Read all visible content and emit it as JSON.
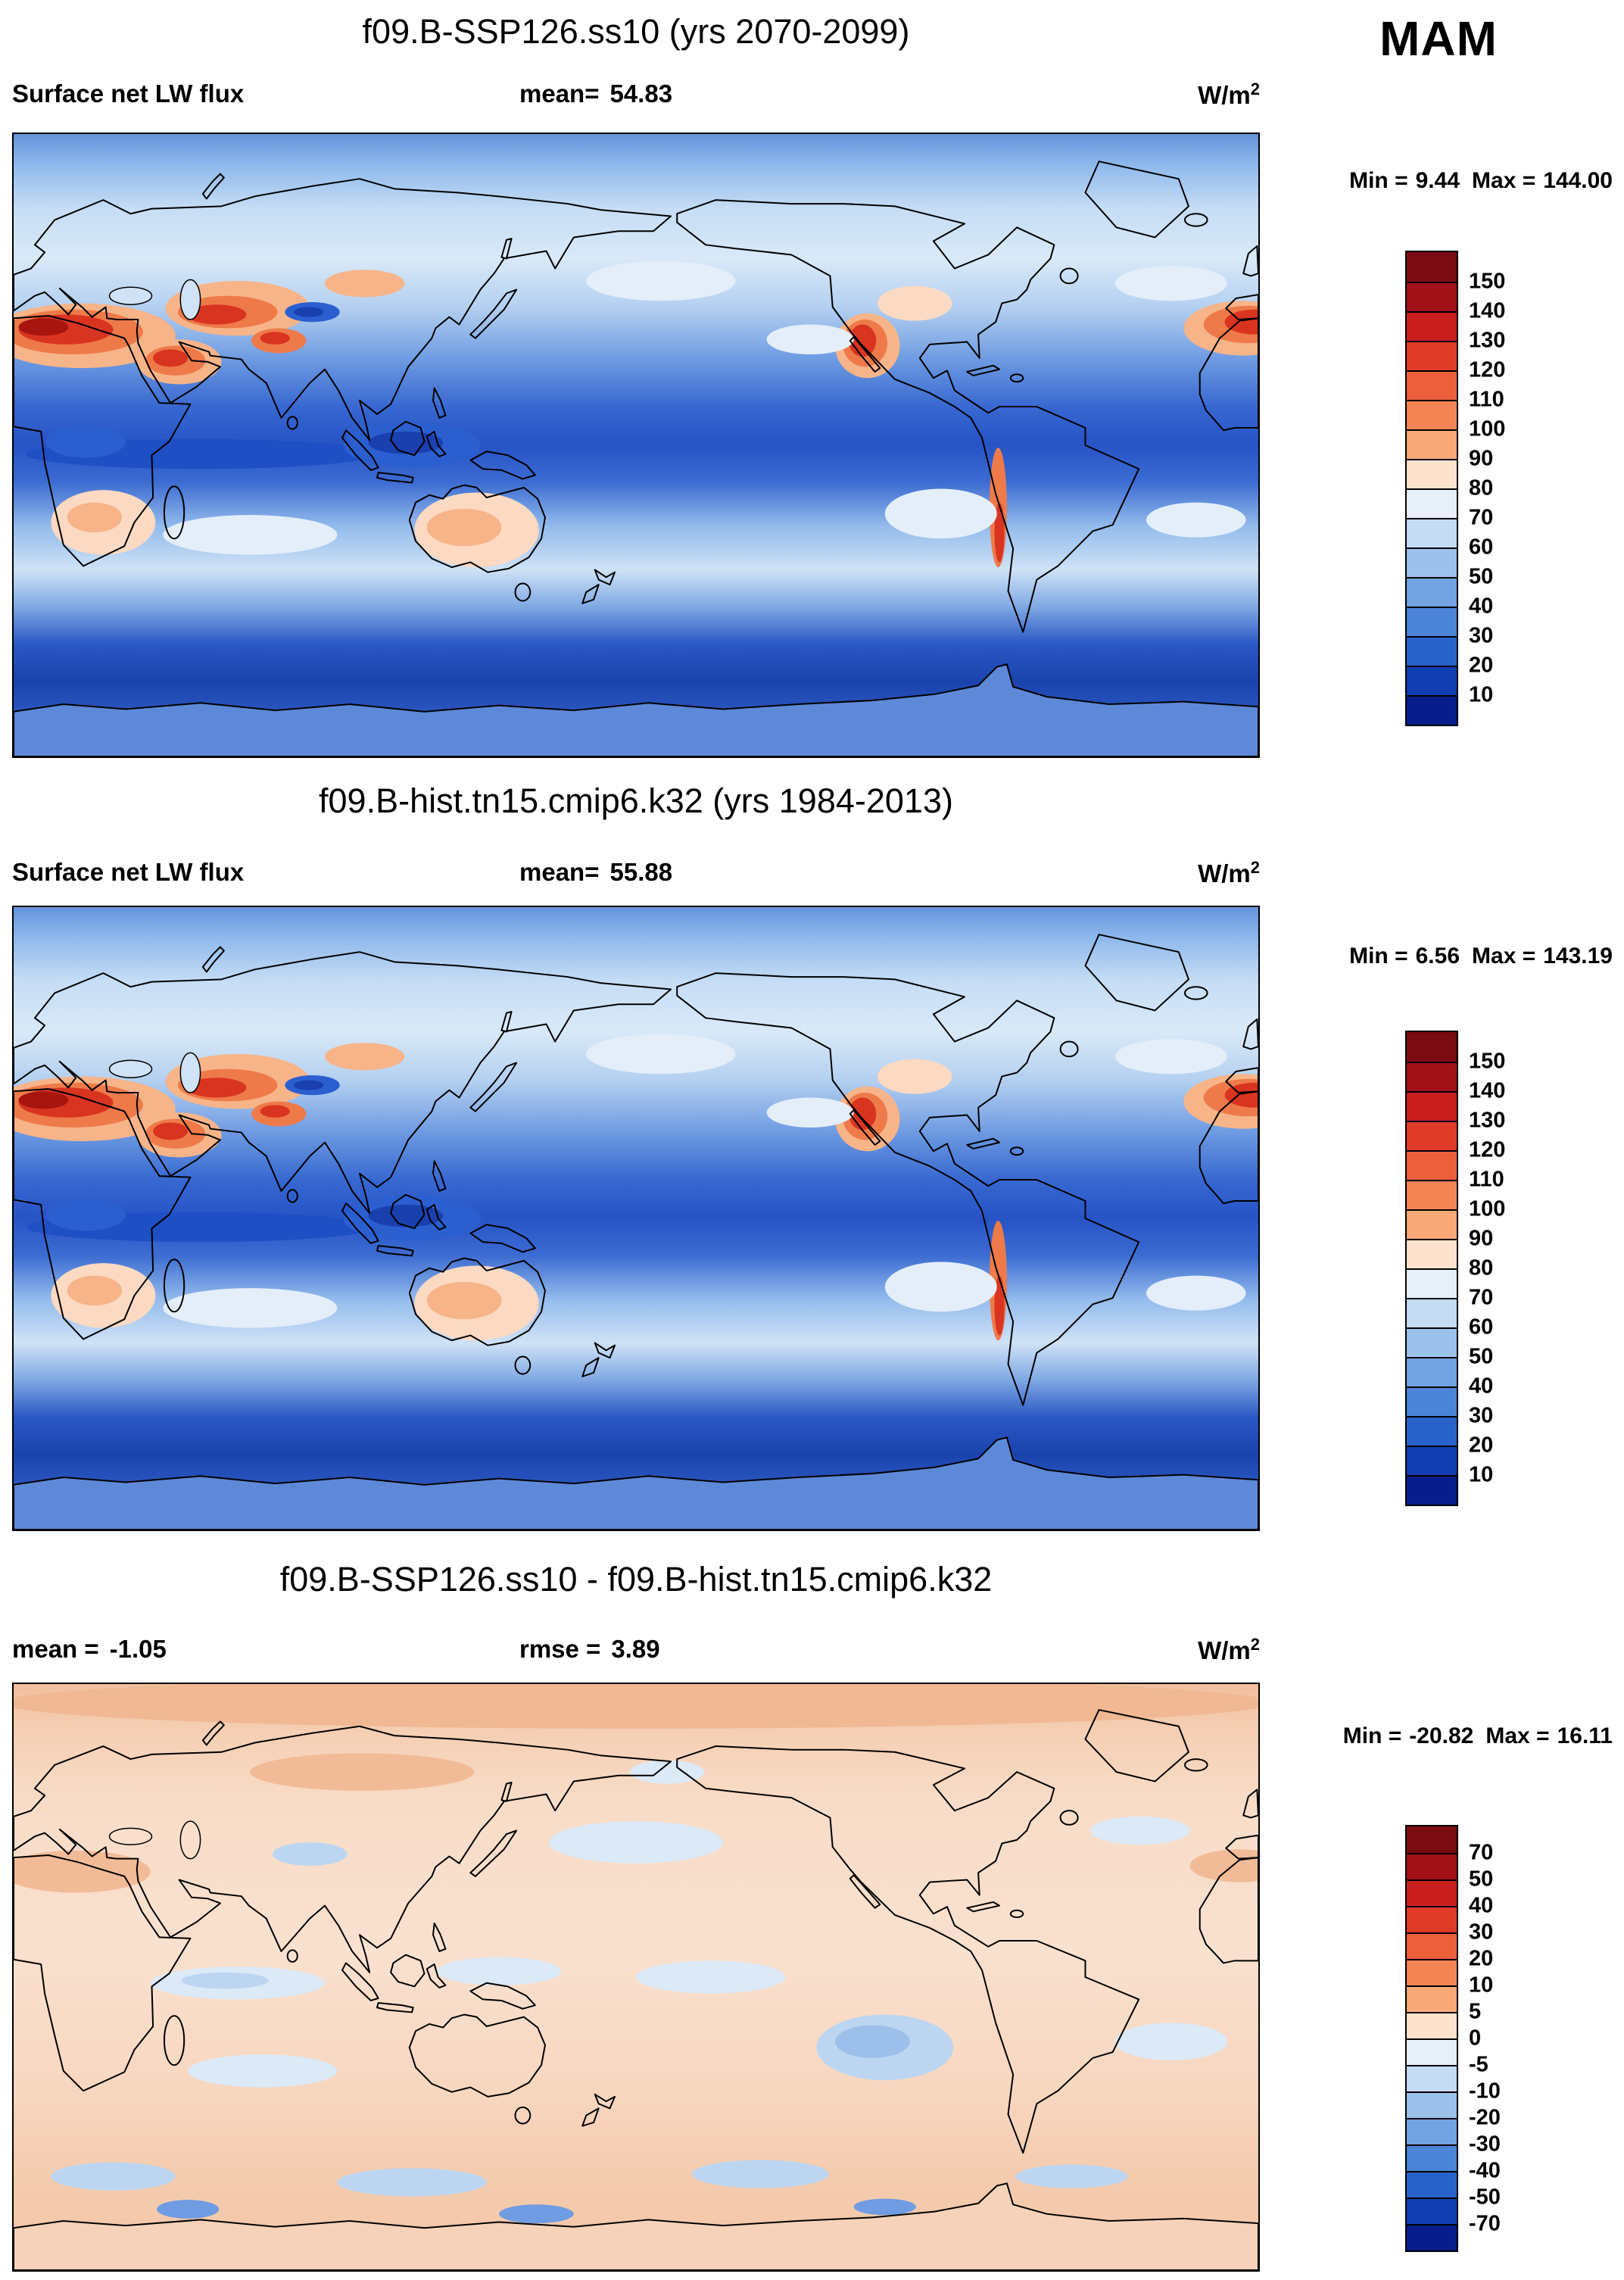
{
  "figure": {
    "season": "MAM",
    "units_base": "W/m",
    "units_exp": "2"
  },
  "panels": [
    {
      "title": "f09.B-SSP126.ss10 (yrs 2070-2099)",
      "left_label": "Surface net LW flux",
      "left_value": "",
      "center_label": "mean=",
      "center_value": "54.83",
      "min_label": "Min =",
      "min_value": "9.44",
      "max_label": "Max =",
      "max_value": "144.00",
      "colorbar_labels": [
        "150",
        "140",
        "130",
        "120",
        "110",
        "100",
        "90",
        "80",
        "70",
        "60",
        "50",
        "40",
        "30",
        "20",
        "10"
      ]
    },
    {
      "title": "f09.B-hist.tn15.cmip6.k32 (yrs 1984-2013)",
      "left_label": "Surface net LW flux",
      "left_value": "",
      "center_label": "mean=",
      "center_value": "55.88",
      "min_label": "Min =",
      "min_value": "6.56",
      "max_label": "Max =",
      "max_value": "143.19",
      "colorbar_labels": [
        "150",
        "140",
        "130",
        "120",
        "110",
        "100",
        "90",
        "80",
        "70",
        "60",
        "50",
        "40",
        "30",
        "20",
        "10"
      ]
    },
    {
      "title": "f09.B-SSP126.ss10 - f09.B-hist.tn15.cmip6.k32",
      "left_label": "mean =",
      "left_value": "-1.05",
      "center_label": "rmse =",
      "center_value": "3.89",
      "min_label": "Min =",
      "min_value": "-20.82",
      "max_label": "Max =",
      "max_value": "16.11",
      "colorbar_labels": [
        "70",
        "50",
        "40",
        "30",
        "20",
        "10",
        "5",
        "0",
        "-5",
        "-10",
        "-20",
        "-30",
        "-40",
        "-50",
        "-70"
      ]
    }
  ],
  "colors": {
    "palette_top_to_bottom": [
      "#7a0b11",
      "#a31118",
      "#c81e1e",
      "#e03a28",
      "#ec5f3d",
      "#f58455",
      "#f9a878",
      "#fde3cd",
      "#e7f0f9",
      "#c4dcf4",
      "#9cc2ec",
      "#72a3e2",
      "#4b84d8",
      "#2a62cc",
      "#123eb4",
      "#081d8c"
    ]
  },
  "chart_data": [
    {
      "type": "heatmap",
      "subtype": "filled-contour-global-map",
      "projection": "cylindrical equidistant, Pacific-centered (0E left edge)",
      "title": "f09.B-SSP126.ss10 (yrs 2070-2099)",
      "variable": "Surface net LW flux",
      "season": "MAM",
      "units": "W/m2",
      "mean": 54.83,
      "min": 9.44,
      "max": 144.0,
      "contour_levels": [
        10,
        20,
        30,
        40,
        50,
        60,
        70,
        80,
        90,
        100,
        110,
        120,
        130,
        140,
        150
      ],
      "palette": "blue (low) to white to red (high), 16 classes",
      "legend_position": "right vertical colorbar",
      "notes": "High values (red) over Sahara, Arabia, SW/Central Asia, N India, Mexico/SW North America, Andes, NW Africa; low values (dark blue) over equatorial oceans, maritime continent, Tibet, Southern Ocean"
    },
    {
      "type": "heatmap",
      "subtype": "filled-contour-global-map",
      "projection": "cylindrical equidistant, Pacific-centered (0E left edge)",
      "title": "f09.B-hist.tn15.cmip6.k32 (yrs 1984-2013)",
      "variable": "Surface net LW flux",
      "season": "MAM",
      "units": "W/m2",
      "mean": 55.88,
      "min": 6.56,
      "max": 143.19,
      "contour_levels": [
        10,
        20,
        30,
        40,
        50,
        60,
        70,
        80,
        90,
        100,
        110,
        120,
        130,
        140,
        150
      ],
      "palette": "blue (low) to white to red (high), 16 classes",
      "legend_position": "right vertical colorbar",
      "notes": "Spatial pattern nearly identical to top panel"
    },
    {
      "type": "heatmap",
      "subtype": "filled-contour-global-difference-map",
      "projection": "cylindrical equidistant, Pacific-centered (0E left edge)",
      "title": "f09.B-SSP126.ss10 - f09.B-hist.tn15.cmip6.k32",
      "variable": "Surface net LW flux difference",
      "season": "MAM",
      "units": "W/m2",
      "mean": -1.05,
      "rmse": 3.89,
      "min": -20.82,
      "max": 16.11,
      "contour_levels": [
        -70,
        -50,
        -40,
        -30,
        -20,
        -10,
        -5,
        0,
        5,
        10,
        20,
        30,
        40,
        50,
        70
      ],
      "palette": "blue (negative) to white to red (positive), 16 classes",
      "legend_position": "right vertical colorbar",
      "notes": "Mostly weak positive (pale salmon 0 to 10) over NH land/Arctic; weak negative (pale blue -10 to 0) patches over Tibet, equatorial and SE Pacific, S Atlantic, Southern Ocean"
    }
  ]
}
